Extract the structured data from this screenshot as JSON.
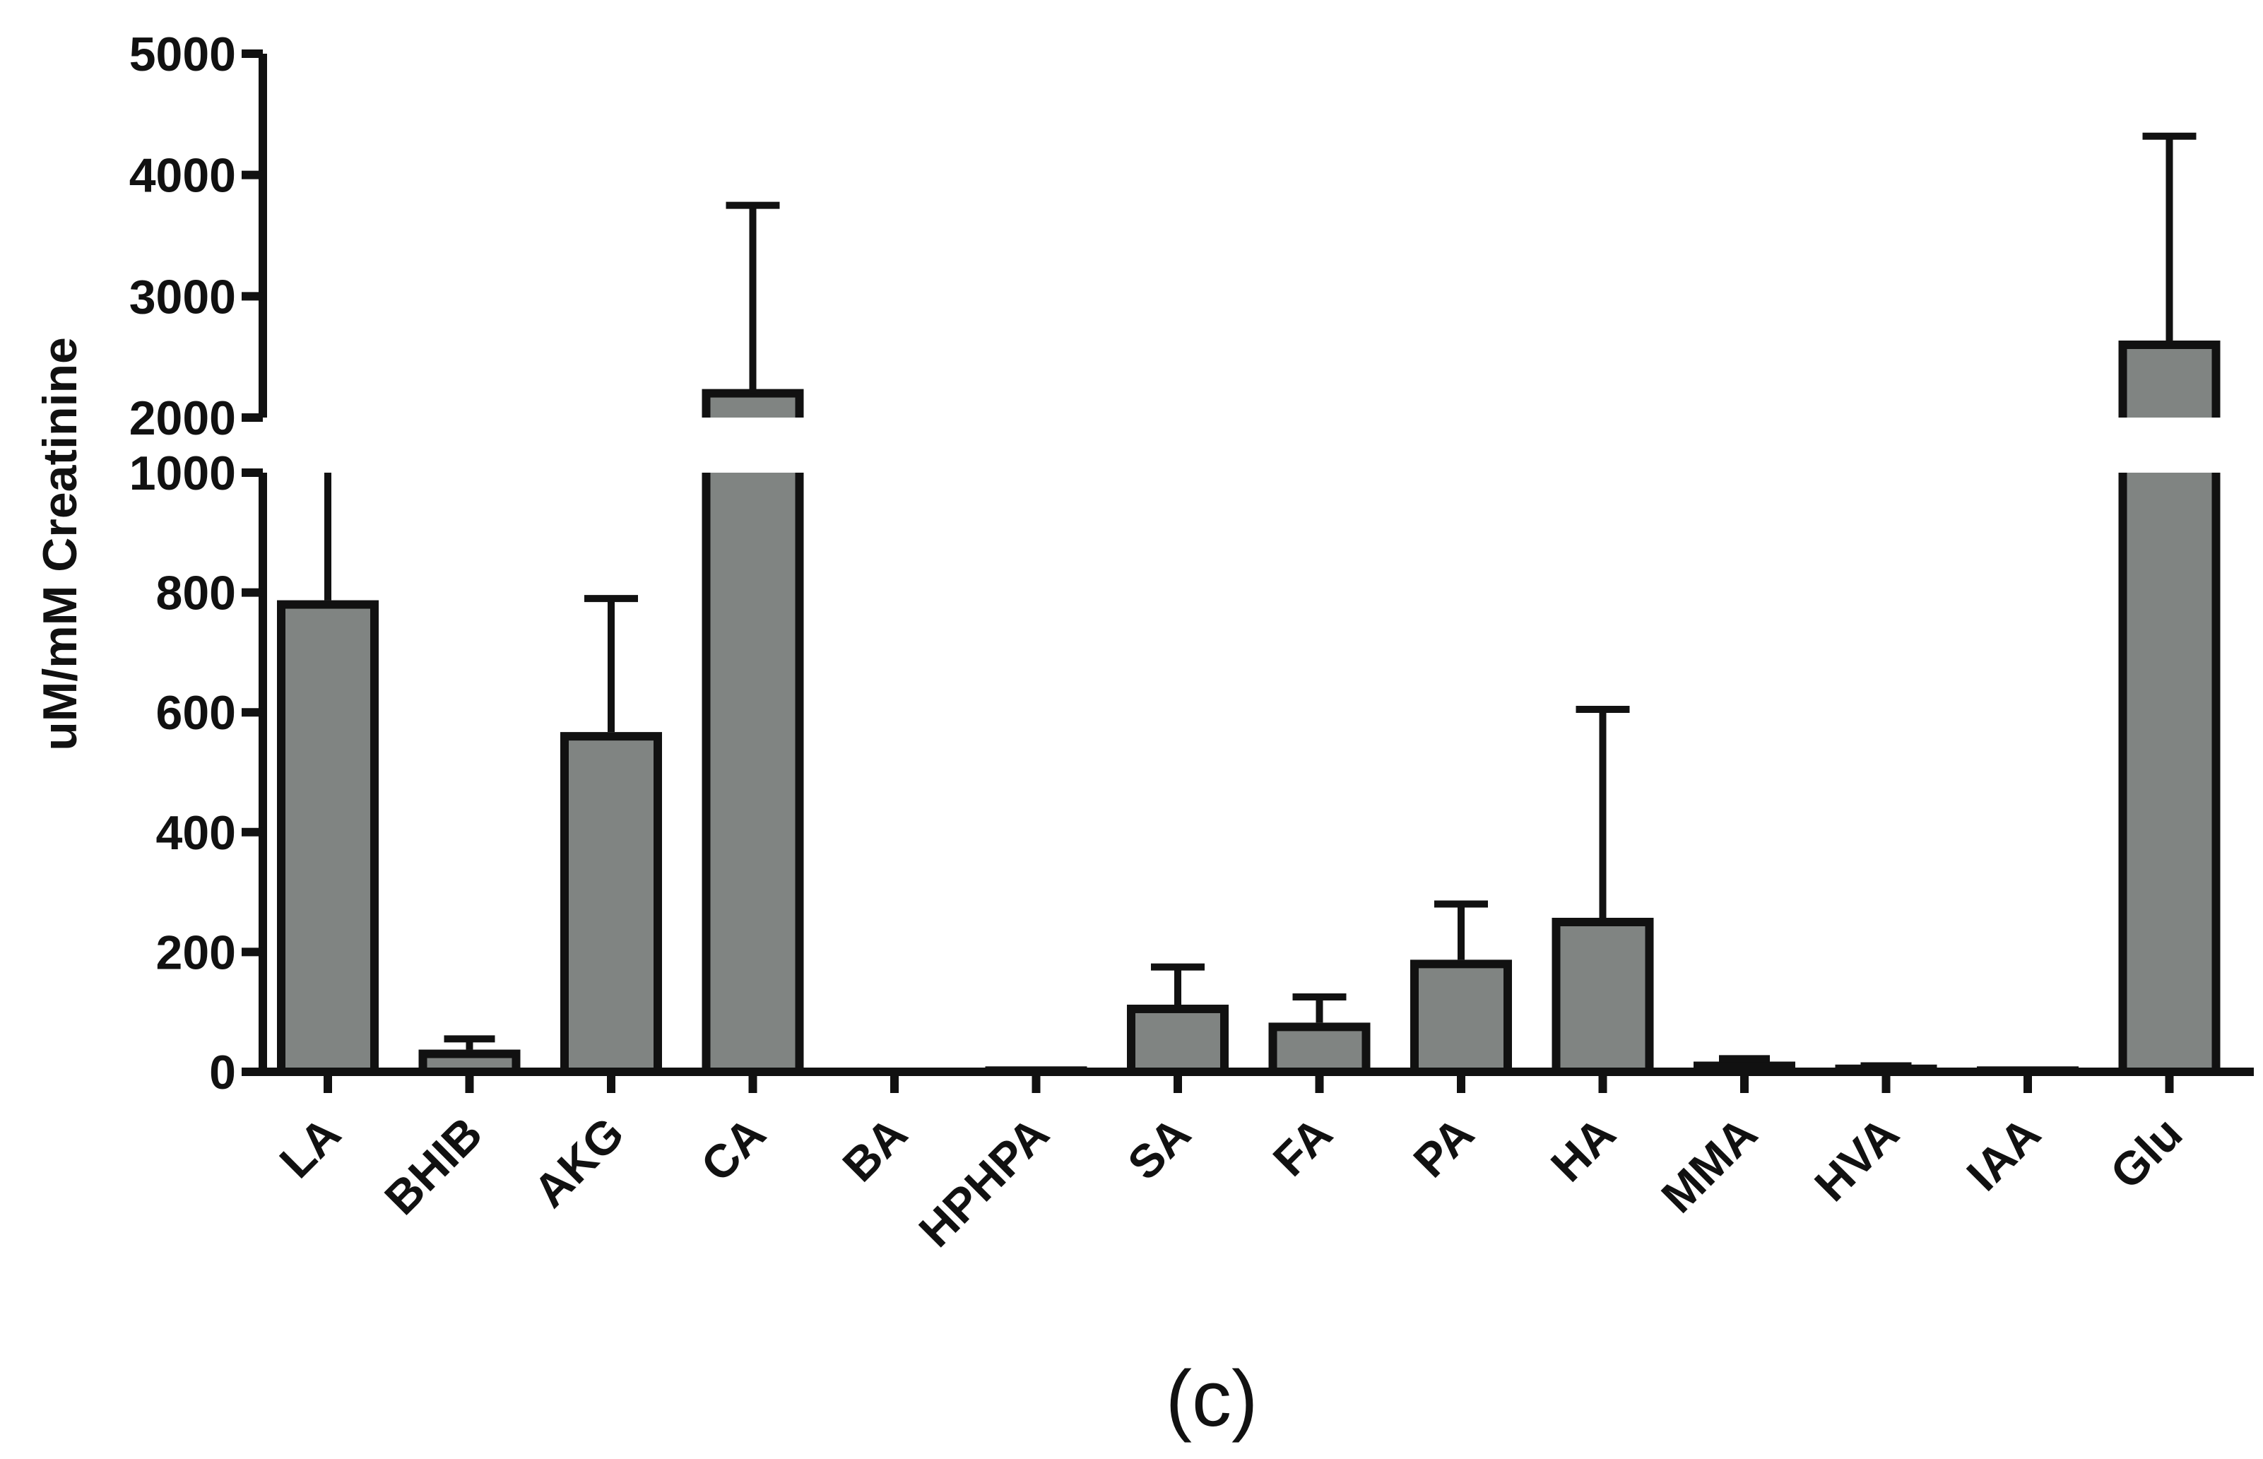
{
  "chart_data": {
    "type": "bar",
    "panel_label": "(c)",
    "ylabel": "uM/mM Creatinine",
    "xlabel": "",
    "categories": [
      "LA",
      "BHIB",
      "AKG",
      "CA",
      "BA",
      "HPHPA",
      "SA",
      "FA",
      "PA",
      "HA",
      "MMA",
      "HVA",
      "IAA",
      "Glu"
    ],
    "values": [
      780,
      30,
      560,
      2200,
      0,
      2,
      105,
      75,
      180,
      250,
      10,
      5,
      2,
      2600
    ],
    "error_upper": [
      1000,
      55,
      790,
      3750,
      0,
      2,
      175,
      125,
      280,
      605,
      22,
      10,
      2,
      4320
    ],
    "error_upper_clipped": [
      true,
      false,
      false,
      false,
      false,
      false,
      false,
      false,
      false,
      false,
      false,
      false,
      false,
      false
    ],
    "y_axis_segments": [
      {
        "ylim": [
          0,
          1000
        ],
        "ticks": [
          "0",
          "200",
          "400",
          "600",
          "800",
          "1000"
        ]
      },
      {
        "ylim": [
          2000,
          5000
        ],
        "ticks": [
          "2000",
          "3000",
          "4000",
          "5000"
        ]
      }
    ],
    "bar_color": "#808482",
    "edge_color": "#111111",
    "grid": false,
    "legend": false
  }
}
